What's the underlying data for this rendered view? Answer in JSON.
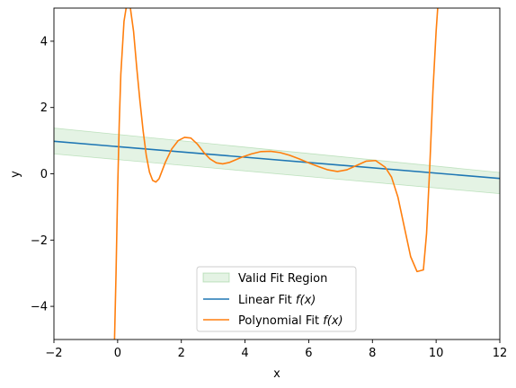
{
  "chart_data": {
    "type": "line",
    "title": "",
    "xlabel": "x",
    "ylabel": "y",
    "xlim": [
      -2,
      12
    ],
    "ylim": [
      -5,
      5
    ],
    "xticks": [
      -2,
      0,
      2,
      4,
      6,
      8,
      10,
      12
    ],
    "yticks": [
      -4,
      -2,
      0,
      2,
      4
    ],
    "xtick_labels": [
      "−2",
      "0",
      "2",
      "4",
      "6",
      "8",
      "10",
      "12"
    ],
    "ytick_labels": [
      "−4",
      "−2",
      "0",
      "2",
      "4"
    ],
    "grid": false,
    "legend": {
      "placement": "lower center",
      "entries": [
        {
          "label": "Valid Fit Region",
          "kind": "band",
          "color": "#2ca02c"
        },
        {
          "label": "Linear Fit ",
          "math": "f(x)",
          "kind": "line",
          "color": "#1f77b4"
        },
        {
          "label": "Polynomial Fit ",
          "math": "f(x)",
          "kind": "line",
          "color": "#ff7f0e"
        }
      ]
    },
    "band": {
      "name": "Valid Fit Region",
      "color": "#2ca02c",
      "x": [
        -2,
        12
      ],
      "lower": [
        0.6,
        -0.6
      ],
      "upper": [
        1.38,
        0.04
      ]
    },
    "series": [
      {
        "name": "Linear Fit f(x)",
        "color": "#1f77b4",
        "x": [
          -2,
          12
        ],
        "y": [
          0.98,
          -0.14
        ]
      },
      {
        "name": "Polynomial Fit f(x)",
        "color": "#ff7f0e",
        "x": [
          -0.1,
          -0.05,
          0.0,
          0.05,
          0.1,
          0.2,
          0.3,
          0.4,
          0.5,
          0.6,
          0.7,
          0.8,
          0.9,
          1.0,
          1.1,
          1.2,
          1.3,
          1.4,
          1.5,
          1.7,
          1.9,
          2.1,
          2.3,
          2.5,
          2.7,
          2.9,
          3.1,
          3.3,
          3.5,
          3.7,
          3.9,
          4.2,
          4.5,
          4.8,
          5.1,
          5.4,
          5.7,
          6.0,
          6.3,
          6.6,
          6.9,
          7.2,
          7.5,
          7.8,
          8.1,
          8.4,
          8.6,
          8.8,
          9.0,
          9.2,
          9.4,
          9.6,
          9.7,
          9.8,
          9.9,
          10.0,
          10.05,
          10.1,
          10.15
        ],
        "y": [
          -5.1,
          -3.0,
          -0.5,
          1.5,
          3.0,
          4.6,
          5.2,
          5.0,
          4.3,
          3.2,
          2.2,
          1.3,
          0.55,
          0.05,
          -0.2,
          -0.25,
          -0.15,
          0.1,
          0.35,
          0.75,
          1.0,
          1.1,
          1.08,
          0.9,
          0.65,
          0.45,
          0.33,
          0.3,
          0.34,
          0.42,
          0.5,
          0.6,
          0.67,
          0.68,
          0.64,
          0.56,
          0.45,
          0.33,
          0.22,
          0.12,
          0.07,
          0.12,
          0.25,
          0.38,
          0.4,
          0.2,
          -0.1,
          -0.7,
          -1.6,
          -2.5,
          -2.95,
          -2.9,
          -1.8,
          0.2,
          2.5,
          4.3,
          5.0,
          5.2,
          5.3
        ]
      }
    ]
  }
}
